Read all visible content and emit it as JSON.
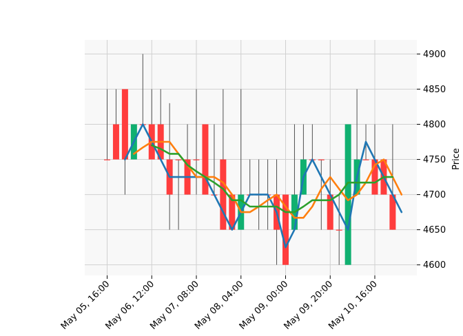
{
  "chart_data": {
    "type": "candlestick",
    "title": "",
    "xlabel": "",
    "ylabel": "Price",
    "ylim": [
      4585,
      4920
    ],
    "y_ticks": [
      4600,
      4650,
      4700,
      4750,
      4800,
      4850,
      4900
    ],
    "x_ticks": [
      {
        "index": 0,
        "label": "May 05, 16:00"
      },
      {
        "index": 5,
        "label": "May 06, 12:00"
      },
      {
        "index": 10,
        "label": "May 07, 08:00"
      },
      {
        "index": 15,
        "label": "May 08, 04:00"
      },
      {
        "index": 20,
        "label": "May 09, 00:00"
      },
      {
        "index": 25,
        "label": "May 09, 20:00"
      },
      {
        "index": 30,
        "label": "May 10, 16:00"
      }
    ],
    "grid": true,
    "colors": {
      "up": "#10b070",
      "down": "#ff3d3d",
      "wick": "#505050",
      "background": "#f8f8f8",
      "grid": "#d0d0d0",
      "ma_short": "#1f77b4",
      "ma_mid": "#ff7f0e",
      "ma_long": "#2ca02c"
    },
    "candles": [
      {
        "open": 4750,
        "high": 4850,
        "low": 4750,
        "close": 4750
      },
      {
        "open": 4800,
        "high": 4850,
        "low": 4750,
        "close": 4750
      },
      {
        "open": 4850,
        "high": 4850,
        "low": 4700,
        "close": 4750
      },
      {
        "open": 4750,
        "high": 4800,
        "low": 4750,
        "close": 4800
      },
      {
        "open": 4800,
        "high": 4900,
        "low": 4800,
        "close": 4800
      },
      {
        "open": 4800,
        "high": 4850,
        "low": 4750,
        "close": 4750
      },
      {
        "open": 4800,
        "high": 4850,
        "low": 4750,
        "close": 4750
      },
      {
        "open": 4750,
        "high": 4830,
        "low": 4650,
        "close": 4700
      },
      {
        "open": 4750,
        "high": 4750,
        "low": 4650,
        "close": 4750
      },
      {
        "open": 4750,
        "high": 4800,
        "low": 4700,
        "close": 4700
      },
      {
        "open": 4750,
        "high": 4850,
        "low": 4700,
        "close": 4750
      },
      {
        "open": 4800,
        "high": 4800,
        "low": 4700,
        "close": 4700
      },
      {
        "open": 4700,
        "high": 4800,
        "low": 4700,
        "close": 4700
      },
      {
        "open": 4750,
        "high": 4850,
        "low": 4650,
        "close": 4650
      },
      {
        "open": 4700,
        "high": 4700,
        "low": 4650,
        "close": 4650
      },
      {
        "open": 4650,
        "high": 4850,
        "low": 4650,
        "close": 4700
      },
      {
        "open": 4700,
        "high": 4750,
        "low": 4700,
        "close": 4700
      },
      {
        "open": 4700,
        "high": 4750,
        "low": 4650,
        "close": 4700
      },
      {
        "open": 4700,
        "high": 4750,
        "low": 4650,
        "close": 4700
      },
      {
        "open": 4700,
        "high": 4750,
        "low": 4600,
        "close": 4650
      },
      {
        "open": 4700,
        "high": 4700,
        "low": 4600,
        "close": 4600
      },
      {
        "open": 4650,
        "high": 4800,
        "low": 4650,
        "close": 4700
      },
      {
        "open": 4700,
        "high": 4800,
        "low": 4700,
        "close": 4750
      },
      {
        "open": 4750,
        "high": 4800,
        "low": 4750,
        "close": 4750
      },
      {
        "open": 4750,
        "high": 4750,
        "low": 4650,
        "close": 4750
      },
      {
        "open": 4700,
        "high": 4750,
        "low": 4650,
        "close": 4650
      },
      {
        "open": 4650,
        "high": 4700,
        "low": 4600,
        "close": 4650
      },
      {
        "open": 4600,
        "high": 4800,
        "low": 4600,
        "close": 4800
      },
      {
        "open": 4700,
        "high": 4850,
        "low": 4700,
        "close": 4750
      },
      {
        "open": 4750,
        "high": 4800,
        "low": 4750,
        "close": 4750
      },
      {
        "open": 4750,
        "high": 4800,
        "low": 4700,
        "close": 4700
      },
      {
        "open": 4750,
        "high": 4750,
        "low": 4700,
        "close": 4700
      },
      {
        "open": 4700,
        "high": 4800,
        "low": 4650,
        "close": 4650
      }
    ],
    "series": [
      {
        "color": "#1f77b4",
        "start": 2,
        "values": [
          4750,
          4775,
          4800,
          4775,
          4750,
          4725,
          4725,
          4725,
          4725,
          4725,
          4700,
          4675,
          4650,
          4675,
          4700,
          4700,
          4700,
          4675,
          4625,
          4650,
          4725,
          4750,
          4725,
          4700,
          4675,
          4650,
          4725,
          4775,
          4750,
          4725,
          4700,
          4675
        ]
      },
      {
        "color": "#ff7f0e",
        "start": 3,
        "values": [
          4758,
          4767,
          4775,
          4775,
          4775,
          4758,
          4742,
          4725,
          4725,
          4725,
          4717,
          4700,
          4675,
          4675,
          4683,
          4692,
          4700,
          4683,
          4667,
          4667,
          4683,
          4708,
          4725,
          4708,
          4692,
          4700,
          4717,
          4742,
          4750,
          4725,
          4700
        ]
      },
      {
        "color": "#2ca02c",
        "start": 5,
        "values": [
          4770,
          4765,
          4758,
          4758,
          4742,
          4733,
          4725,
          4717,
          4708,
          4692,
          4692,
          4683,
          4683,
          4683,
          4683,
          4675,
          4675,
          4683,
          4692,
          4692,
          4692,
          4700,
          4717,
          4717,
          4717,
          4717,
          4725,
          4725
        ]
      }
    ]
  }
}
